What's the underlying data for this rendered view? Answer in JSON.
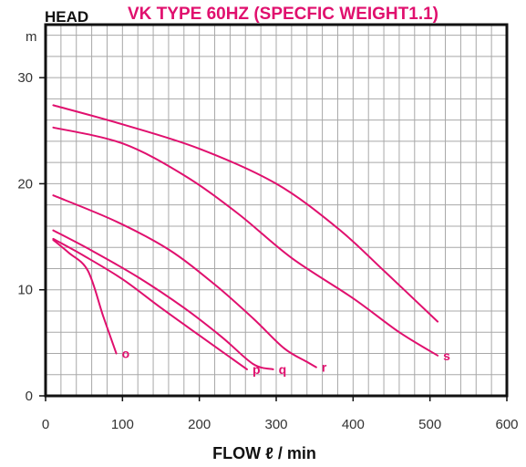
{
  "chart_data": {
    "type": "line",
    "title": "VK TYPE 60HZ (SPECFIC WEIGHT1.1)",
    "ylabel": "HEAD",
    "yunit": "m",
    "xlabel": "FLOW ℓ / min",
    "xlim": [
      0,
      600
    ],
    "ylim": [
      0,
      35
    ],
    "xticks": [
      0,
      100,
      200,
      300,
      400,
      500,
      600
    ],
    "yticks": [
      0,
      10,
      20,
      30
    ],
    "grid": true,
    "colors": {
      "curve": "#e0106e",
      "title": "#e0106e",
      "grid": "#a8a8a8",
      "frame": "#111111"
    },
    "series": [
      {
        "name": "o",
        "x": [
          10,
          30,
          55,
          75,
          92
        ],
        "y": [
          14.7,
          13.5,
          11.8,
          7.5,
          4.0
        ]
      },
      {
        "name": "p",
        "x": [
          10,
          50,
          100,
          150,
          200,
          262
        ],
        "y": [
          14.8,
          13.2,
          11.0,
          8.3,
          5.7,
          2.5
        ]
      },
      {
        "name": "q",
        "x": [
          10,
          60,
          120,
          180,
          230,
          270,
          296
        ],
        "y": [
          15.6,
          13.7,
          11.2,
          8.3,
          5.5,
          3.0,
          2.5
        ]
      },
      {
        "name": "r",
        "x": [
          10,
          90,
          160,
          220,
          270,
          310,
          340,
          352
        ],
        "y": [
          18.9,
          16.5,
          13.8,
          10.5,
          7.3,
          4.5,
          3.2,
          2.7
        ]
      },
      {
        "name": "s",
        "x": [
          10,
          100,
          180,
          250,
          320,
          400,
          460,
          510
        ],
        "y": [
          25.3,
          23.8,
          20.8,
          17.2,
          13.0,
          9.2,
          6.0,
          3.8
        ]
      },
      {
        "name": "",
        "x": [
          10,
          100,
          200,
          300,
          380,
          440,
          510
        ],
        "y": [
          27.4,
          25.6,
          23.3,
          20.0,
          15.8,
          11.8,
          7.0
        ]
      }
    ]
  }
}
